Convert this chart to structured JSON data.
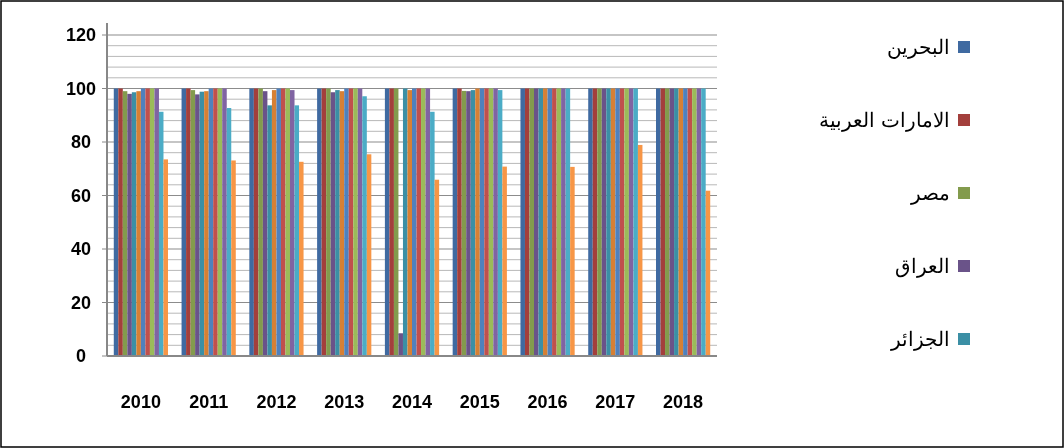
{
  "chart_data": {
    "type": "bar",
    "categories": [
      "2010",
      "2011",
      "2012",
      "2013",
      "2014",
      "2015",
      "2016",
      "2017",
      "2018"
    ],
    "ylim": [
      0,
      120
    ],
    "yticks": [
      0,
      {
        "value": 4,
        "label": null
      },
      {
        "value": 8,
        "label": null
      },
      {
        "value": 12,
        "label": null
      },
      {
        "value": 16,
        "label": null
      },
      20,
      {
        "value": 24,
        "label": null
      },
      {
        "value": 28,
        "label": null
      },
      {
        "value": 32,
        "label": null
      },
      {
        "value": 36,
        "label": null
      },
      40,
      {
        "value": 44,
        "label": null
      },
      {
        "value": 48,
        "label": null
      },
      {
        "value": 52,
        "label": null
      },
      {
        "value": 56,
        "label": null
      },
      60,
      {
        "value": 64,
        "label": null
      },
      {
        "value": 68,
        "label": null
      },
      {
        "value": 72,
        "label": null
      },
      {
        "value": 76,
        "label": null
      },
      80,
      {
        "value": 84,
        "label": null
      },
      {
        "value": 88,
        "label": null
      },
      {
        "value": 92,
        "label": null
      },
      {
        "value": 96,
        "label": null
      },
      100,
      {
        "value": 104,
        "label": null
      },
      {
        "value": 108,
        "label": null
      },
      {
        "value": 112,
        "label": null
      },
      {
        "value": 116,
        "label": null
      },
      120
    ],
    "grid": "y",
    "legend": "right",
    "series": [
      {
        "name": "البحرين",
        "color": "#3f6aa1",
        "values": [
          100,
          100,
          100,
          100,
          100,
          100,
          100,
          100,
          100
        ]
      },
      {
        "name": "الامارات العربية",
        "color": "#a33f3c",
        "values": [
          100,
          100,
          100,
          100,
          100,
          100,
          100,
          100,
          100
        ]
      },
      {
        "name": "مصر",
        "color": "#839b4d",
        "values": [
          99,
          99.4,
          100,
          100,
          100,
          99.1,
          100,
          100,
          100
        ]
      },
      {
        "name": "العراق",
        "color": "#6a5389",
        "values": [
          98,
          97.8,
          99,
          98.6,
          8.5,
          99,
          100,
          100,
          100
        ]
      },
      {
        "name": "الجزائر",
        "color": "#3b8fa5",
        "values": [
          98.6,
          98.8,
          93.7,
          99.4,
          100,
          99.4,
          100,
          100,
          100
        ]
      },
      {
        "color": "#d68034",
        "values": [
          99,
          99,
          99.4,
          99,
          99.4,
          100,
          100,
          100,
          100
        ]
      },
      {
        "color": "#4f81bd",
        "values": [
          100,
          100,
          100,
          100,
          100,
          100,
          100,
          100,
          100
        ]
      },
      {
        "color": "#c0504d",
        "values": [
          100,
          100,
          100,
          100,
          100,
          100,
          100,
          100,
          100
        ]
      },
      {
        "color": "#9bbb59",
        "values": [
          100,
          100,
          100,
          100,
          100,
          100,
          100,
          100,
          100
        ]
      },
      {
        "color": "#8064a2",
        "values": [
          100,
          100,
          99.4,
          100,
          100,
          100,
          100,
          100,
          100
        ]
      },
      {
        "color": "#4bacc6",
        "values": [
          91.3,
          92.7,
          93.7,
          97.1,
          91.3,
          99.4,
          100,
          100,
          100
        ]
      },
      {
        "color": "#f79646",
        "values": [
          73.5,
          73.1,
          72.6,
          75.4,
          65.9,
          70.8,
          70.7,
          78.9,
          61.8
        ]
      }
    ]
  }
}
